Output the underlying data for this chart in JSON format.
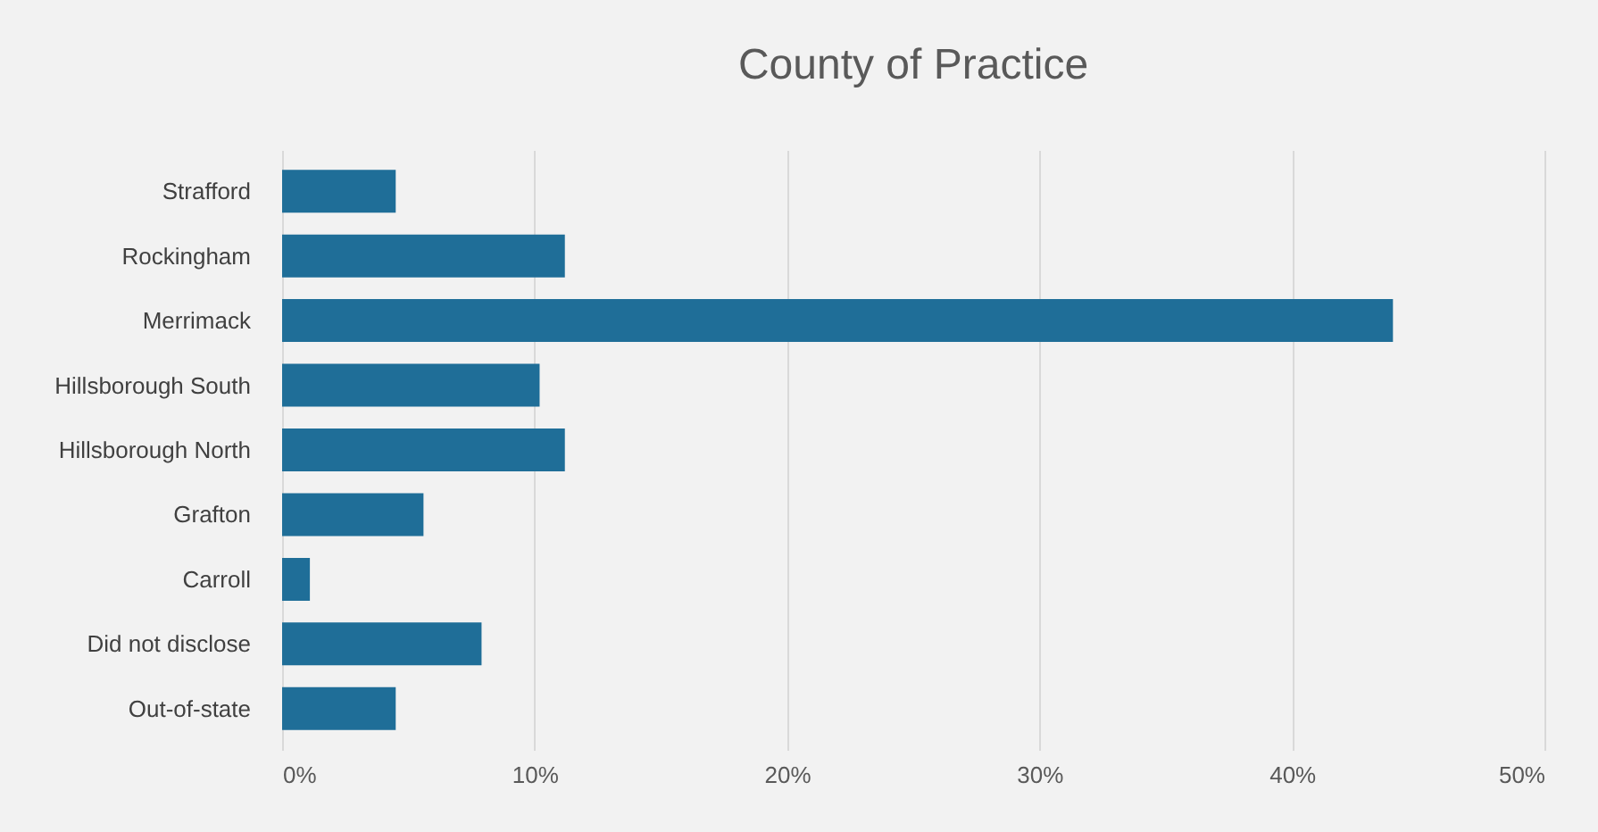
{
  "chart_data": {
    "type": "bar",
    "orientation": "horizontal",
    "title": "County of Practice",
    "categories": [
      "Strafford",
      "Rockingham",
      "Merrimack",
      "Hillsborough South",
      "Hillsborough North",
      "Grafton",
      "Carroll",
      "Did not disclose",
      "Out-of-state"
    ],
    "values": [
      4.5,
      11.2,
      44,
      10.2,
      11.2,
      5.6,
      1.1,
      7.9,
      4.5
    ],
    "color": "#1f6e98",
    "xlim": [
      0,
      50
    ],
    "xticks": [
      {
        "value": 0,
        "label": "0%"
      },
      {
        "value": 10,
        "label": "10%"
      },
      {
        "value": 20,
        "label": "20%"
      },
      {
        "value": 30,
        "label": "30%"
      },
      {
        "value": 40,
        "label": "40%"
      },
      {
        "value": 50,
        "label": "50%"
      }
    ],
    "grid": "x"
  }
}
